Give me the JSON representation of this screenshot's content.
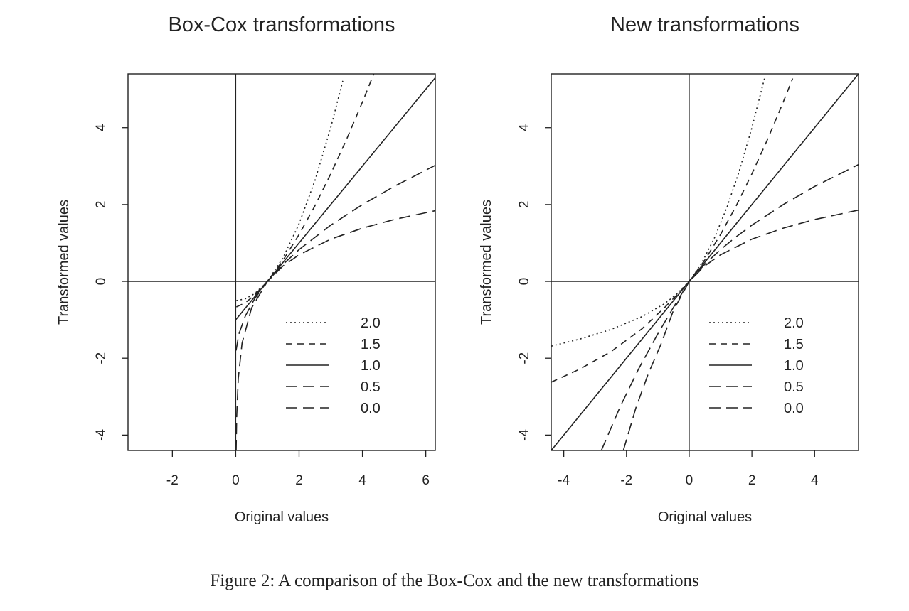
{
  "caption": "Figure 2: A comparison of the Box-Cox and the new transformations",
  "chart_data": [
    {
      "type": "line",
      "title": "Box-Cox transformations",
      "xlabel": "Original values",
      "ylabel": "Transformed values",
      "xlim": [
        -3.4,
        6.3
      ],
      "ylim": [
        -4.4,
        5.4
      ],
      "xticks": [
        -2,
        0,
        2,
        4,
        6
      ],
      "yticks": [
        -4,
        -2,
        0,
        2,
        4
      ],
      "reference_lines": {
        "x": 0,
        "y": 0
      },
      "legend": {
        "position": "lower-right",
        "entries": [
          "2.0",
          "1.5",
          "1.0",
          "0.5",
          "0.0"
        ]
      },
      "series": [
        {
          "name": "2.0",
          "dash": "dotted",
          "x": [
            0.02,
            0.3,
            0.6,
            1.0,
            1.5,
            2.0,
            2.5,
            3.0,
            3.4
          ],
          "y": [
            -0.5,
            -0.455,
            -0.32,
            0.0,
            0.625,
            1.5,
            2.625,
            4.0,
            5.28
          ]
        },
        {
          "name": "1.5",
          "dash": "short-dash",
          "x": [
            0.02,
            0.3,
            0.6,
            1.0,
            1.5,
            2.0,
            2.5,
            3.0,
            3.5,
            4.0,
            4.4
          ],
          "y": [
            -0.665,
            -0.557,
            -0.357,
            0.0,
            0.558,
            1.219,
            1.969,
            2.798,
            3.699,
            4.667,
            5.486
          ]
        },
        {
          "name": "1.0",
          "dash": "solid",
          "x": [
            0.0,
            6.3
          ],
          "y": [
            -1.0,
            5.3
          ]
        },
        {
          "name": "0.5",
          "dash": "long-dash",
          "x": [
            0.01,
            0.1,
            0.3,
            0.6,
            1.0,
            1.5,
            2.0,
            3.0,
            4.0,
            5.0,
            6.3
          ],
          "y": [
            -1.8,
            -1.368,
            -0.905,
            -0.451,
            0.0,
            0.449,
            0.828,
            1.464,
            2.0,
            2.472,
            3.02
          ]
        },
        {
          "name": "0.0",
          "dash": "long-dash",
          "x": [
            0.012,
            0.03,
            0.08,
            0.2,
            0.5,
            1.0,
            1.5,
            2.0,
            3.0,
            4.0,
            5.0,
            6.3
          ],
          "y": [
            -4.42,
            -3.507,
            -2.526,
            -1.609,
            -0.693,
            0.0,
            0.405,
            0.693,
            1.099,
            1.386,
            1.609,
            1.841
          ]
        }
      ]
    },
    {
      "type": "line",
      "title": "New transformations",
      "xlabel": "Original values",
      "ylabel": "Transformed values",
      "xlim": [
        -4.4,
        5.4
      ],
      "ylim": [
        -4.4,
        5.4
      ],
      "xticks": [
        -4,
        -2,
        0,
        2,
        4
      ],
      "yticks": [
        -4,
        -2,
        0,
        2,
        4
      ],
      "reference_lines": {
        "x": 0,
        "y": 0
      },
      "legend": {
        "position": "lower-right",
        "entries": [
          "2.0",
          "1.5",
          "1.0",
          "0.5",
          "0.0"
        ]
      },
      "series": [
        {
          "name": "2.0",
          "dash": "dotted",
          "x": [
            -4.4,
            -3.5,
            -2.5,
            -1.5,
            -0.8,
            -0.4,
            0.0,
            0.4,
            0.8,
            1.2,
            1.6,
            2.0,
            2.4
          ],
          "y": [
            -1.686,
            -1.504,
            -1.253,
            -0.916,
            -0.588,
            -0.336,
            0.0,
            0.48,
            1.12,
            1.92,
            2.88,
            4.0,
            5.28
          ]
        },
        {
          "name": "1.5",
          "dash": "short-dash",
          "x": [
            -4.4,
            -3.5,
            -2.5,
            -1.5,
            -0.8,
            -0.4,
            0.0,
            0.5,
            1.0,
            1.5,
            2.0,
            2.5,
            3.0,
            3.3
          ],
          "y": [
            -2.623,
            -2.287,
            -1.832,
            -1.231,
            -0.693,
            -0.359,
            0.0,
            0.558,
            1.219,
            1.969,
            2.798,
            3.699,
            4.667,
            5.28
          ]
        },
        {
          "name": "1.0",
          "dash": "solid",
          "x": [
            -4.4,
            5.4
          ],
          "y": [
            -4.4,
            5.4
          ]
        },
        {
          "name": "0.5",
          "dash": "long-dash",
          "x": [
            -2.8,
            -2.2,
            -1.6,
            -1.0,
            -0.5,
            0.0,
            0.5,
            1.0,
            1.5,
            2.0,
            3.0,
            4.0,
            5.4
          ],
          "y": [
            -4.4,
            -3.26,
            -2.258,
            -1.364,
            -0.675,
            0.0,
            0.449,
            0.828,
            1.162,
            1.464,
            2.0,
            2.472,
            3.04
          ]
        },
        {
          "name": "0.0",
          "dash": "long-dash",
          "x": [
            -2.1,
            -1.7,
            -1.3,
            -0.9,
            -0.5,
            0.0,
            0.5,
            1.0,
            2.0,
            3.0,
            4.0,
            5.4
          ],
          "y": [
            -4.4,
            -3.292,
            -2.391,
            -1.636,
            -0.75,
            0.0,
            0.405,
            0.693,
            1.099,
            1.386,
            1.609,
            1.856
          ]
        }
      ]
    }
  ]
}
